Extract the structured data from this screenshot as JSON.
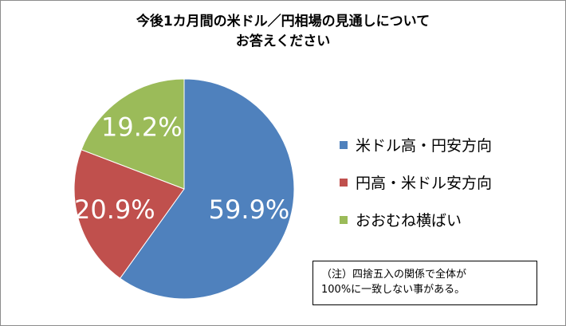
{
  "chart_data": {
    "type": "pie",
    "title_lines": [
      "今後1カ月間の米ドル／円相場の見通しについて",
      "お答えください"
    ],
    "categories": [
      "米ドル高・円安方向",
      "円高・米ドル安方向",
      "おおむね横ばい"
    ],
    "values": [
      59.9,
      20.9,
      19.2
    ],
    "data_labels": [
      "59.9%",
      "20.9%",
      "19.2%"
    ],
    "colors": [
      "#4f81bd",
      "#c0504d",
      "#9bbb59"
    ],
    "legend_position": "right"
  },
  "note": {
    "lines": [
      "（注）四捨五入の関係で全体が",
      "100%に一致しない事がある。"
    ]
  }
}
